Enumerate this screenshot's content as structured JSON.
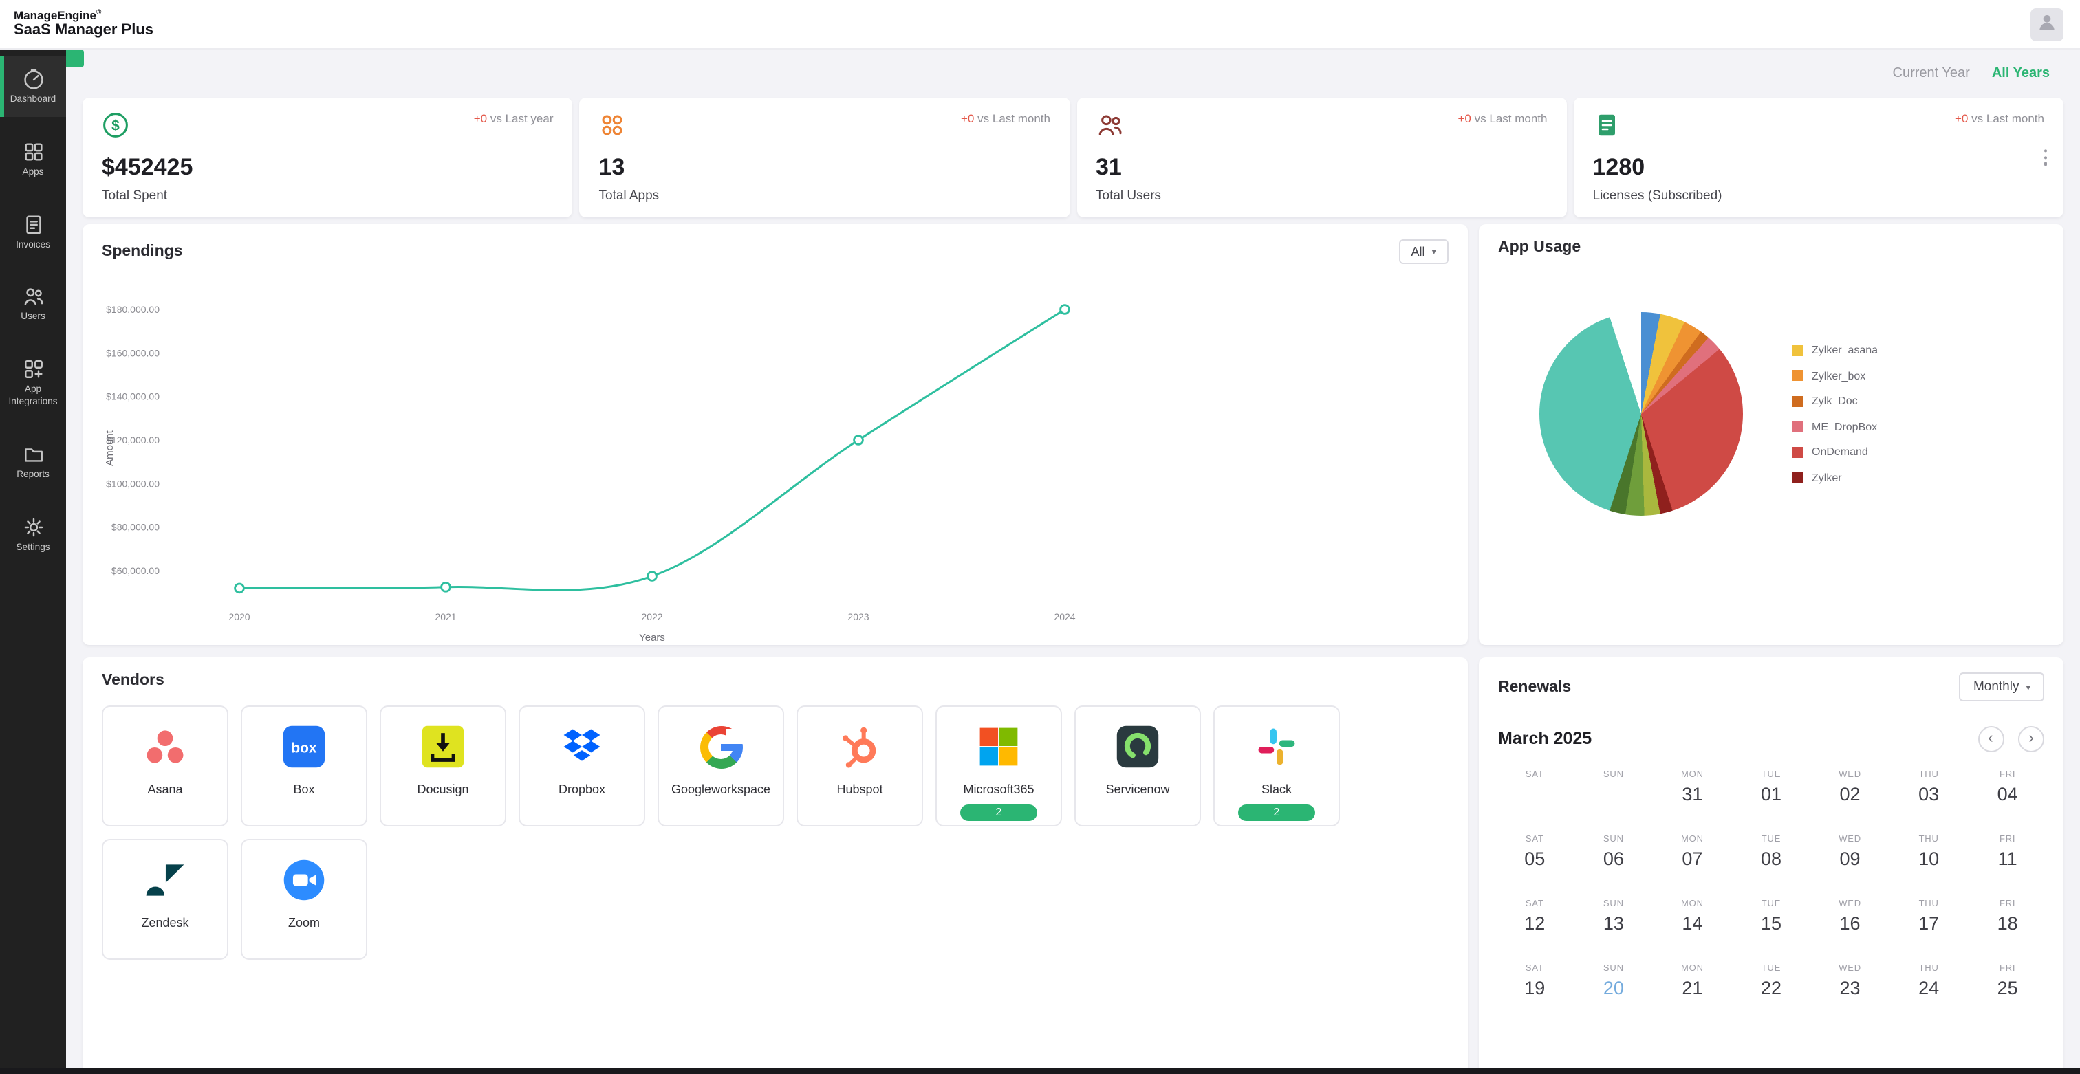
{
  "header": {
    "brand_line1": "ManageEngine",
    "brand_reg": "®",
    "brand_line2": "SaaS Manager Plus",
    "avatar_icon": "user-avatar-icon"
  },
  "sidebar": {
    "items": [
      {
        "id": "dashboard",
        "label": "Dashboard",
        "icon": "dashboard-icon",
        "active": true
      },
      {
        "id": "apps",
        "label": "Apps",
        "icon": "apps-icon",
        "active": false
      },
      {
        "id": "invoices",
        "label": "Invoices",
        "icon": "invoices-icon",
        "active": false
      },
      {
        "id": "users",
        "label": "Users",
        "icon": "users-icon",
        "active": false
      },
      {
        "id": "app-integrations",
        "label": "App Integrations",
        "icon": "integrations-icon",
        "active": false
      },
      {
        "id": "reports",
        "label": "Reports",
        "icon": "reports-icon",
        "active": false
      },
      {
        "id": "settings",
        "label": "Settings",
        "icon": "settings-icon",
        "active": false
      }
    ]
  },
  "filters": {
    "options": [
      {
        "id": "current-year",
        "label": "Current Year",
        "active": false
      },
      {
        "id": "all-years",
        "label": "All Years",
        "active": true
      }
    ]
  },
  "stats": [
    {
      "icon": "dollar-coin-icon",
      "delta": "+0",
      "delta_label": "vs Last year",
      "value": "$452425",
      "label": "Total Spent",
      "kebab": false
    },
    {
      "icon": "apps-grid-icon",
      "delta": "+0",
      "delta_label": "vs Last month",
      "value": "13",
      "label": "Total Apps",
      "kebab": false
    },
    {
      "icon": "user-group-icon",
      "delta": "+0",
      "delta_label": "vs Last month",
      "value": "31",
      "label": "Total Users",
      "kebab": false
    },
    {
      "icon": "license-doc-icon",
      "delta": "+0",
      "delta_label": "vs Last month",
      "value": "1280",
      "label": "Licenses (Subscribed)",
      "kebab": true
    }
  ],
  "spendings": {
    "title": "Spendings",
    "filter_value": "All"
  },
  "app_usage": {
    "title": "App Usage"
  },
  "chart_data": [
    {
      "type": "line",
      "title": "Spendings",
      "xlabel": "Years",
      "ylabel": "Amount",
      "x": [
        "2020",
        "2021",
        "2022",
        "2023",
        "2024"
      ],
      "values": [
        52000,
        52500,
        57500,
        120000,
        180000
      ],
      "ylim": [
        45000,
        185000
      ],
      "yticks": [
        {
          "v": 180000,
          "label": "$180,000.00"
        },
        {
          "v": 160000,
          "label": "$160,000.00"
        },
        {
          "v": 140000,
          "label": "$140,000.00"
        },
        {
          "v": 120000,
          "label": "$120,000.00"
        },
        {
          "v": 100000,
          "label": "$100,000.00"
        },
        {
          "v": 80000,
          "label": "$80,000.00"
        },
        {
          "v": 60000,
          "label": "$60,000.00"
        }
      ],
      "line_color": "#2ebf9f",
      "grid": false,
      "legend_position": "none"
    },
    {
      "type": "pie",
      "title": "App Usage",
      "legend_position": "right",
      "legend": [
        {
          "label": "Zylker_asana",
          "color": "#f0c23c"
        },
        {
          "label": "Zylker_box",
          "color": "#ef9332"
        },
        {
          "label": "Zylk_Doc",
          "color": "#cf6c1f"
        },
        {
          "label": "ME_DropBox",
          "color": "#e0707c"
        },
        {
          "label": "OnDemand",
          "color": "#cf4a45"
        },
        {
          "label": "Zylker",
          "color": "#8f201d"
        }
      ],
      "slices": [
        {
          "label": "",
          "color": "#4a8fd3",
          "pct": 3
        },
        {
          "label": "Zylker_asana",
          "color": "#f0c23c",
          "pct": 4
        },
        {
          "label": "Zylker_box",
          "color": "#ef9332",
          "pct": 3
        },
        {
          "label": "Zylk_Doc",
          "color": "#cf6c1f",
          "pct": 1.5
        },
        {
          "label": "ME_DropBox",
          "color": "#e0707c",
          "pct": 2.5
        },
        {
          "label": "OnDemand",
          "color": "#cf4a45",
          "pct": 31
        },
        {
          "label": "Zylker",
          "color": "#8f201d",
          "pct": 2
        },
        {
          "label": "",
          "color": "#a9b83e",
          "pct": 2.5
        },
        {
          "label": "",
          "color": "#6f9e3b",
          "pct": 3
        },
        {
          "label": "",
          "color": "#49762b",
          "pct": 2.5
        },
        {
          "label": "",
          "color": "#57c6b2",
          "pct": 40
        },
        {
          "label": "",
          "color": "#ffffff",
          "pct": 5
        }
      ]
    }
  ],
  "vendors": {
    "title": "Vendors",
    "items": [
      {
        "id": "asana",
        "name": "Asana",
        "icon": "asana-logo-icon",
        "badge": ""
      },
      {
        "id": "box",
        "name": "Box",
        "icon": "box-logo-icon",
        "badge": ""
      },
      {
        "id": "docusign",
        "name": "Docusign",
        "icon": "docusign-logo-icon",
        "badge": ""
      },
      {
        "id": "dropbox",
        "name": "Dropbox",
        "icon": "dropbox-logo-icon",
        "badge": ""
      },
      {
        "id": "googleworkspace",
        "name": "Googleworkspace",
        "icon": "googleworkspace-logo-icon",
        "badge": ""
      },
      {
        "id": "hubspot",
        "name": "Hubspot",
        "icon": "hubspot-logo-icon",
        "badge": ""
      },
      {
        "id": "microsoft365",
        "name": "Microsoft365",
        "icon": "microsoft365-logo-icon",
        "badge": "2"
      },
      {
        "id": "servicenow",
        "name": "Servicenow",
        "icon": "servicenow-logo-icon",
        "badge": ""
      },
      {
        "id": "slack",
        "name": "Slack",
        "icon": "slack-logo-icon",
        "badge": "2"
      },
      {
        "id": "zendesk",
        "name": "Zendesk",
        "icon": "zendesk-logo-icon",
        "badge": ""
      },
      {
        "id": "zoom",
        "name": "Zoom",
        "icon": "zoom-logo-icon",
        "badge": ""
      }
    ]
  },
  "renewals": {
    "title": "Renewals",
    "range_value": "Monthly",
    "month_label": "March 2025",
    "weekdays": [
      "SAT",
      "SUN",
      "MON",
      "TUE",
      "WED",
      "THU",
      "FRI"
    ],
    "cells": [
      {
        "num": ""
      },
      {
        "num": ""
      },
      {
        "num": "31"
      },
      {
        "num": "01"
      },
      {
        "num": "02"
      },
      {
        "num": "03"
      },
      {
        "num": "04"
      },
      {
        "num": "05"
      },
      {
        "num": "06"
      },
      {
        "num": "07"
      },
      {
        "num": "08"
      },
      {
        "num": "09"
      },
      {
        "num": "10"
      },
      {
        "num": "11"
      },
      {
        "num": "12"
      },
      {
        "num": "13"
      },
      {
        "num": "14"
      },
      {
        "num": "15"
      },
      {
        "num": "16"
      },
      {
        "num": "17"
      },
      {
        "num": "18"
      },
      {
        "num": "19"
      },
      {
        "num": "20",
        "highlight": true
      },
      {
        "num": "21"
      },
      {
        "num": "22"
      },
      {
        "num": "23"
      },
      {
        "num": "24"
      },
      {
        "num": "25"
      }
    ]
  },
  "colors": {
    "accent_green": "#2bb573",
    "delta_red": "#e4584a",
    "chart_teal": "#2ebf9f",
    "sidebar_bg": "#212121",
    "page_bg": "#f3f3f7",
    "today_blue": "#74abdd"
  }
}
